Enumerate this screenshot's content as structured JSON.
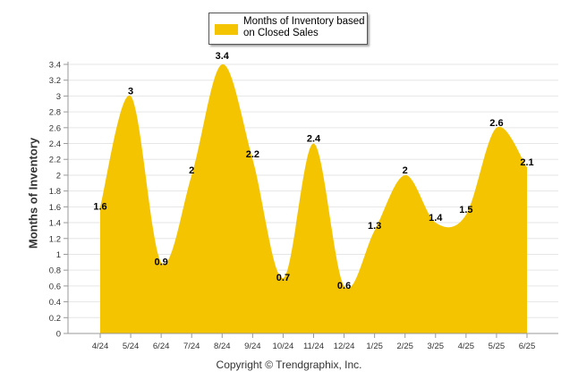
{
  "chart_data": {
    "type": "area",
    "title": "",
    "ylabel": "Months of Inventory",
    "xlabel": "",
    "categories": [
      "4/24",
      "5/24",
      "6/24",
      "7/24",
      "8/24",
      "9/24",
      "10/24",
      "11/24",
      "12/24",
      "1/25",
      "2/25",
      "3/25",
      "4/25",
      "5/25",
      "6/25"
    ],
    "series": [
      {
        "name": "Months of Inventory based on Closed Sales",
        "color": "#F5C400",
        "values": [
          1.6,
          3,
          0.9,
          2,
          3.4,
          2.2,
          0.7,
          2.4,
          0.6,
          1.3,
          2,
          1.4,
          1.5,
          2.6,
          2.1
        ]
      }
    ],
    "ylim": [
      0,
      3.4
    ],
    "yticks": [
      "0",
      "0.2",
      "0.4",
      "0.6",
      "0.8",
      "1",
      "1.2",
      "1.4",
      "1.6",
      "1.8",
      "2",
      "2.2",
      "2.4",
      "2.6",
      "2.8",
      "3",
      "3.2",
      "3.4"
    ],
    "grid": true,
    "legend_position": "top-center"
  },
  "legend": {
    "label": "Months of Inventory based on Closed Sales",
    "color": "#F5C400"
  },
  "footer": {
    "copyright": "Copyright © Trendgraphix, Inc."
  }
}
